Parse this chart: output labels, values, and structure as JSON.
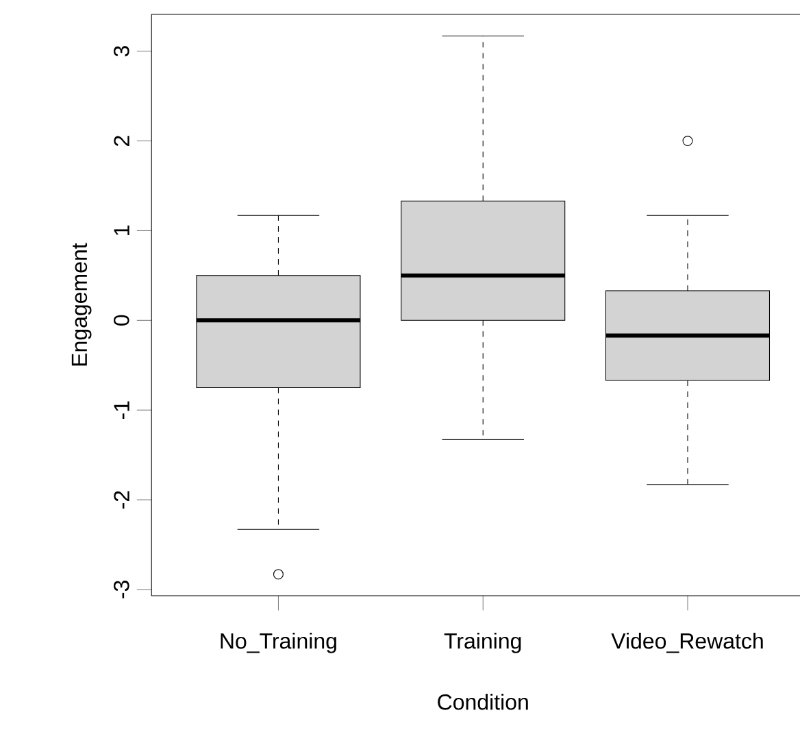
{
  "chart_data": {
    "type": "box",
    "xlabel": "Condition",
    "ylabel": "Engagement",
    "categories": [
      "No_Training",
      "Training",
      "Video_Rewatch"
    ],
    "color": "#d3d3d3",
    "boxes": [
      {
        "low": -2.33,
        "q1": -0.75,
        "median": 0,
        "q3": 0.5,
        "high": 1.17,
        "outliers": [
          -2.83
        ]
      },
      {
        "low": -1.33,
        "q1": 0,
        "median": 0.5,
        "q3": 1.33,
        "high": 3.17
      },
      {
        "low": -1.83,
        "q1": -0.67,
        "median": -0.17,
        "q3": 0.33,
        "high": 1.17,
        "outliers": [
          2
        ]
      }
    ],
    "ylim": [
      -3.07,
      3.41
    ],
    "yticks": [
      -3,
      -2,
      -1,
      0,
      1,
      2,
      3
    ]
  }
}
